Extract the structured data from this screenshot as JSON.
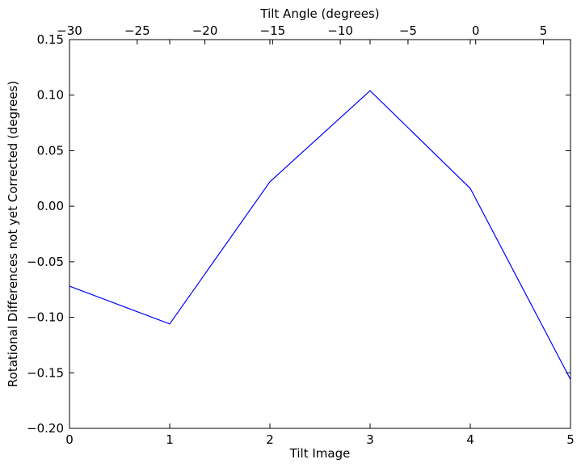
{
  "chart_data": {
    "type": "line",
    "xlabel": "Tilt Image",
    "x2label": "Tilt Angle (degrees)",
    "ylabel": "Rotational Differences not yet Corrected (degrees)",
    "x": [
      0,
      1,
      2,
      3,
      4,
      5
    ],
    "xlim": [
      0,
      5
    ],
    "x2lim": [
      -30,
      7
    ],
    "ylim": [
      -0.2,
      0.15
    ],
    "series": [
      {
        "values": [
          -0.072,
          -0.106,
          0.022,
          0.104,
          0.016,
          -0.156
        ],
        "color": "#0000ff"
      }
    ],
    "x_ticks": [
      {
        "value": 0,
        "label": "0"
      },
      {
        "value": 1,
        "label": "1"
      },
      {
        "value": 2,
        "label": "2"
      },
      {
        "value": 3,
        "label": "3"
      },
      {
        "value": 4,
        "label": "4"
      },
      {
        "value": 5,
        "label": "5"
      }
    ],
    "x2_ticks": [
      {
        "value": -30,
        "label": "−30"
      },
      {
        "value": -25,
        "label": "−25"
      },
      {
        "value": -20,
        "label": "−20"
      },
      {
        "value": -15,
        "label": "−15"
      },
      {
        "value": -10,
        "label": "−10"
      },
      {
        "value": -5,
        "label": "−5"
      },
      {
        "value": 0,
        "label": "0"
      },
      {
        "value": 5,
        "label": "5"
      }
    ],
    "y_ticks": [
      {
        "value": 0.15,
        "label": "0.15"
      },
      {
        "value": 0.1,
        "label": "0.10"
      },
      {
        "value": 0.05,
        "label": "0.05"
      },
      {
        "value": 0.0,
        "label": "0.00"
      },
      {
        "value": -0.05,
        "label": "−0.05"
      },
      {
        "value": -0.1,
        "label": "−0.10"
      },
      {
        "value": -0.15,
        "label": "−0.15"
      },
      {
        "value": -0.2,
        "label": "−0.20"
      }
    ],
    "grid": false,
    "legend": "none"
  }
}
